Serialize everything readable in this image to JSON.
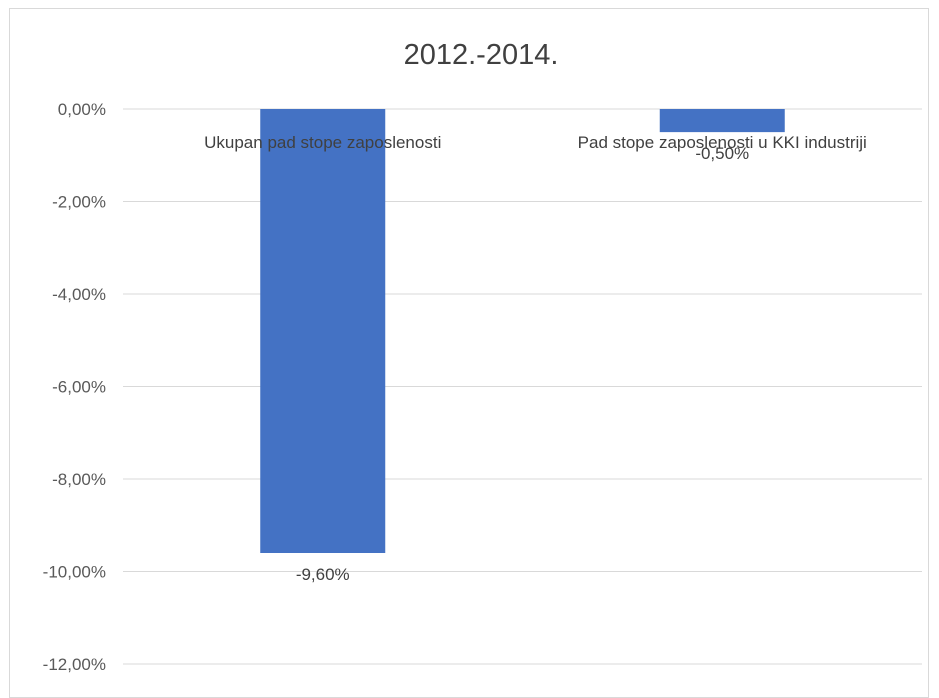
{
  "chart_data": {
    "type": "bar",
    "title": "2012.-2014.",
    "categories": [
      "Ukupan pad stope zaposlenosti",
      "Pad stope zaposlenosti u KKI industriji"
    ],
    "series": [
      {
        "values": [
          -9.6,
          -0.5
        ],
        "data_labels": [
          "-9,60%",
          "-0,50%"
        ],
        "color": "#4472c4"
      }
    ],
    "ylim": [
      -12,
      0
    ],
    "y_ticks": [
      {
        "value": 0,
        "label": "0,00%"
      },
      {
        "value": -2,
        "label": "-2,00%"
      },
      {
        "value": -4,
        "label": "-4,00%"
      },
      {
        "value": -6,
        "label": "-6,00%"
      },
      {
        "value": -8,
        "label": "-8,00%"
      },
      {
        "value": -10,
        "label": "-10,00%"
      },
      {
        "value": -12,
        "label": "-12,00%"
      }
    ],
    "xlabel": "",
    "ylabel": "",
    "grid": true,
    "gridline_color": "#d9d9d9",
    "legend": "none"
  }
}
